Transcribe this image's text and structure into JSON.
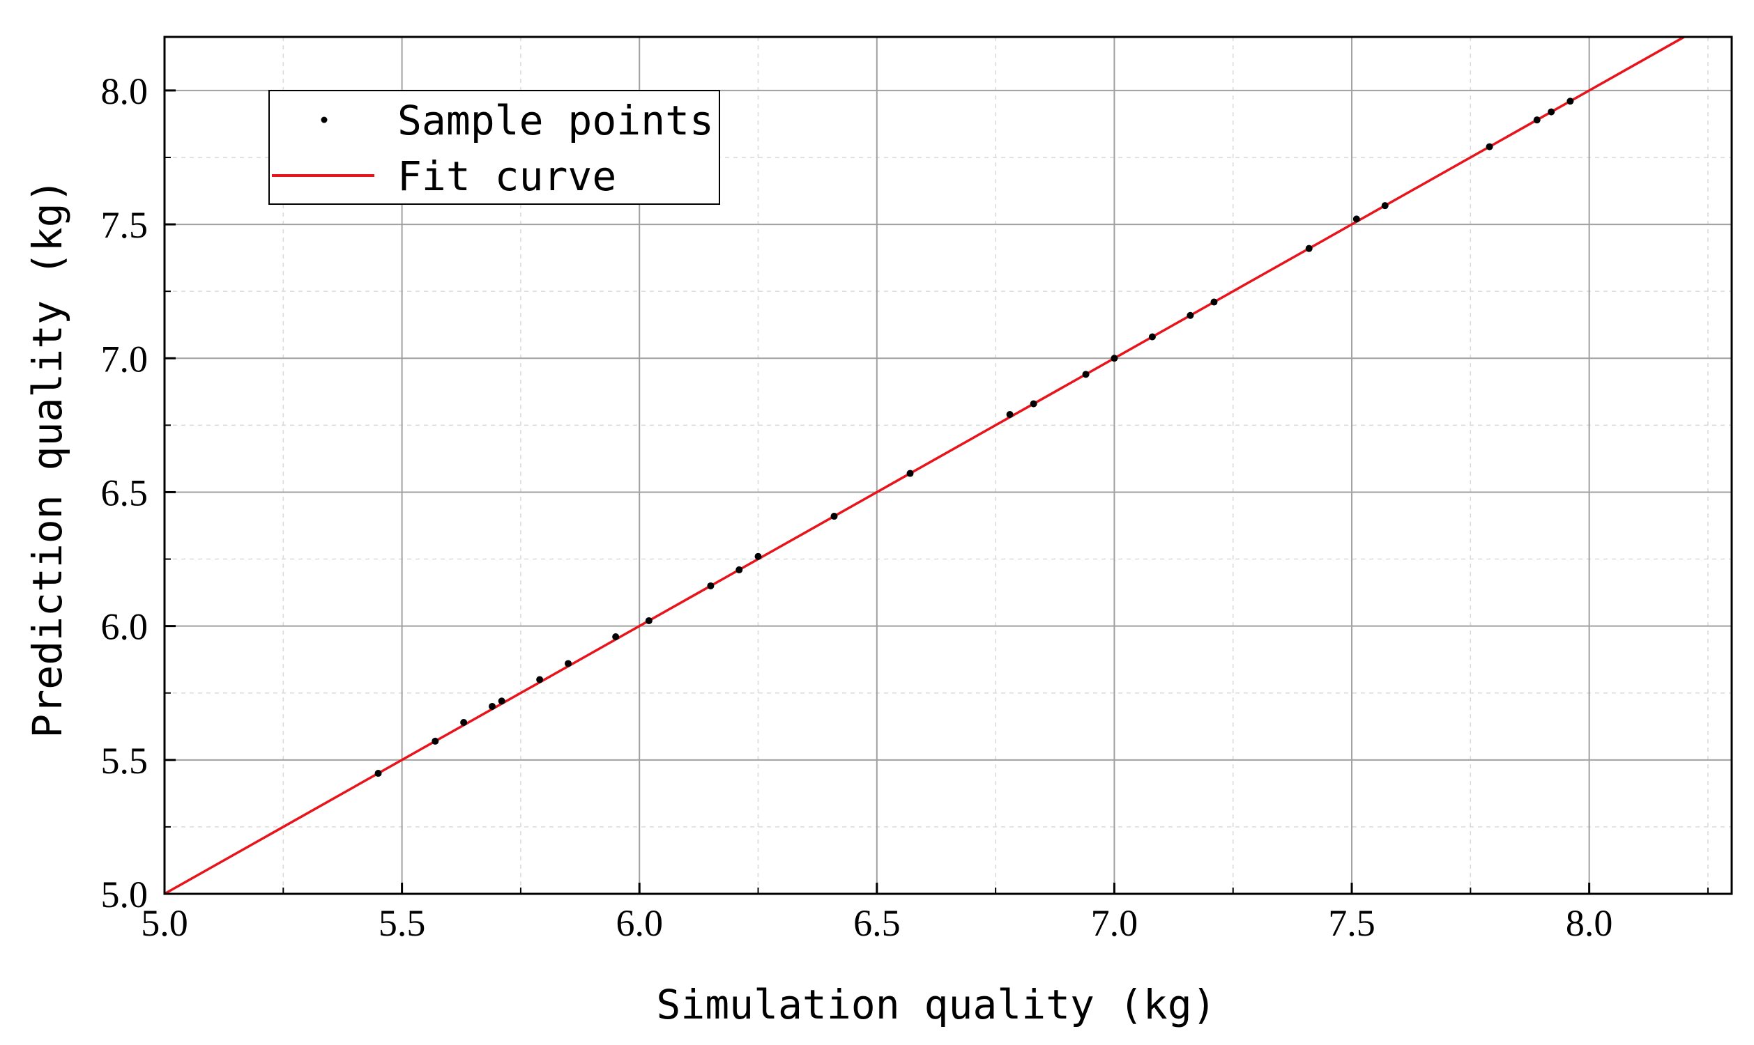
{
  "chart_data": {
    "type": "scatter",
    "title": "",
    "xlabel": "Simulation quality (kg)",
    "ylabel": "Prediction quality (kg)",
    "xlim": [
      5.0,
      8.3
    ],
    "ylim": [
      5.0,
      8.2
    ],
    "x_ticks": [
      "5.0",
      "5.5",
      "6.0",
      "6.5",
      "7.0",
      "7.5",
      "8.0"
    ],
    "y_ticks": [
      "5.0",
      "5.5",
      "6.0",
      "6.5",
      "7.0",
      "7.5",
      "8.0"
    ],
    "grid": true,
    "legend": {
      "position": "top-left",
      "entries": [
        "Sample points",
        "Fit curve"
      ]
    },
    "series": [
      {
        "name": "Sample points",
        "kind": "scatter",
        "color": "#000000",
        "points": [
          [
            5.45,
            5.45
          ],
          [
            5.57,
            5.57
          ],
          [
            5.63,
            5.64
          ],
          [
            5.69,
            5.7
          ],
          [
            5.71,
            5.72
          ],
          [
            5.79,
            5.8
          ],
          [
            5.85,
            5.86
          ],
          [
            5.95,
            5.96
          ],
          [
            6.02,
            6.02
          ],
          [
            6.15,
            6.15
          ],
          [
            6.21,
            6.21
          ],
          [
            6.25,
            6.26
          ],
          [
            6.41,
            6.41
          ],
          [
            6.57,
            6.57
          ],
          [
            6.78,
            6.79
          ],
          [
            6.83,
            6.83
          ],
          [
            6.94,
            6.94
          ],
          [
            7.0,
            7.0
          ],
          [
            7.08,
            7.08
          ],
          [
            7.16,
            7.16
          ],
          [
            7.21,
            7.21
          ],
          [
            7.41,
            7.41
          ],
          [
            7.51,
            7.52
          ],
          [
            7.57,
            7.57
          ],
          [
            7.79,
            7.79
          ],
          [
            7.89,
            7.89
          ],
          [
            7.92,
            7.92
          ],
          [
            7.96,
            7.96
          ]
        ]
      },
      {
        "name": "Fit curve",
        "kind": "line",
        "color": "#e8141c",
        "points": [
          [
            5.0,
            5.0
          ],
          [
            8.2,
            8.2
          ]
        ]
      }
    ]
  }
}
